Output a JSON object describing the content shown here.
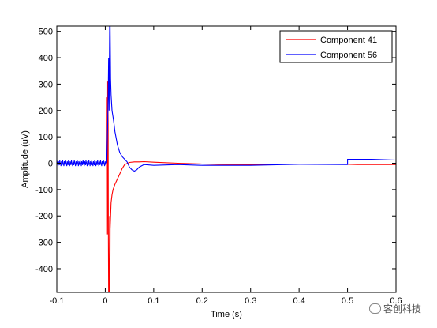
{
  "chart_data": {
    "type": "line",
    "title": "",
    "xlabel": "Time (s)",
    "ylabel": "Amplitude (uV)",
    "xlim": [
      -0.1,
      0.6
    ],
    "ylim": [
      -490,
      520
    ],
    "xticks": [
      -0.1,
      0,
      0.1,
      0.2,
      0.3,
      0.4,
      0.5,
      0.6
    ],
    "xtick_labels": [
      "-0.1",
      "0",
      "0.1",
      "0.2",
      "0.3",
      "0.4",
      "0.5",
      "0.6"
    ],
    "yticks": [
      -400,
      -300,
      -200,
      -100,
      0,
      100,
      200,
      300,
      400,
      500
    ],
    "ytick_labels": [
      "-400",
      "-300",
      "-200",
      "-100",
      "0",
      "100",
      "200",
      "300",
      "400",
      "500"
    ],
    "grid": false,
    "legend_position": "top-right",
    "series": [
      {
        "name": "Component 41",
        "color": "#ff0000",
        "x": [
          0.0035,
          0.004,
          0.0045,
          0.005,
          0.006,
          0.0065,
          0.007,
          0.0075,
          0.008,
          0.009,
          0.0095,
          0.01,
          0.012,
          0.014,
          0.016,
          0.018,
          0.02,
          0.025,
          0.03,
          0.035,
          0.04,
          0.05,
          0.06,
          0.07,
          0.08,
          0.1,
          0.15,
          0.2,
          0.25,
          0.3,
          0.35,
          0.4,
          0.45,
          0.5,
          0.52,
          0.55,
          0.6
        ],
        "y": [
          0,
          250,
          -270,
          310,
          150,
          -300,
          -490,
          -400,
          -490,
          -200,
          -490,
          -250,
          -150,
          -120,
          -100,
          -90,
          -80,
          -60,
          -40,
          -20,
          -5,
          3,
          5,
          5,
          6,
          4,
          0,
          -3,
          -5,
          -6,
          -4,
          -3,
          -3,
          -4,
          -5,
          -5,
          -5
        ]
      },
      {
        "name": "Component 56",
        "color": "#0000ff",
        "x": [
          0.003,
          0.005,
          0.006,
          0.007,
          0.008,
          0.009,
          0.01,
          0.011,
          0.012,
          0.014,
          0.016,
          0.018,
          0.02,
          0.025,
          0.03,
          0.035,
          0.04,
          0.045,
          0.05,
          0.055,
          0.06,
          0.065,
          0.07,
          0.08,
          0.1,
          0.15,
          0.2,
          0.3,
          0.4,
          0.5,
          0.5001,
          0.51,
          0.55,
          0.6
        ],
        "y": [
          0,
          150,
          250,
          400,
          200,
          520,
          520,
          320,
          260,
          200,
          175,
          150,
          120,
          70,
          40,
          25,
          15,
          5,
          -15,
          -25,
          -30,
          -25,
          -15,
          -5,
          -8,
          -5,
          -8,
          -8,
          -4,
          -5,
          15,
          15,
          15,
          12
        ]
      }
    ],
    "baseline": {
      "x_start": -0.1,
      "x_end": 0.003,
      "y": 0
    }
  },
  "watermark": {
    "text": "客创科技"
  }
}
